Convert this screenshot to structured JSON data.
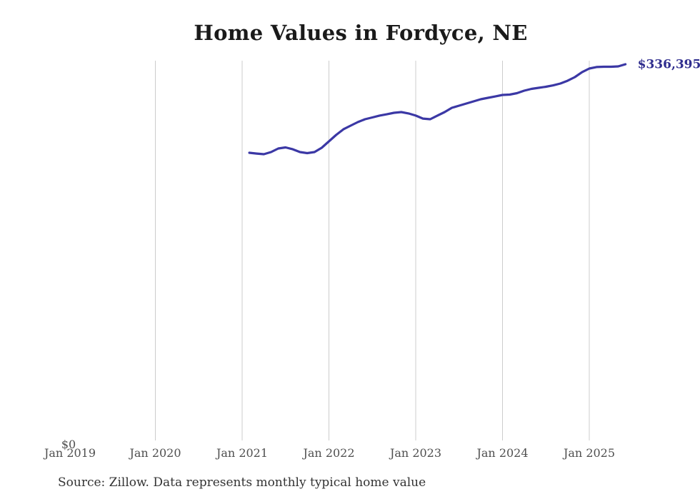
{
  "page": {
    "background": "#ffffff"
  },
  "chart_data": {
    "type": "line",
    "title": "Home Values in Fordyce, NE",
    "source_note": "Source: Zillow. Data represents monthly typical home value",
    "end_label": "$336,395",
    "colors": {
      "line": "#3b38a5",
      "end_label": "#2f2d8e",
      "grid": "#cccccc",
      "axis_text": "#4f4f4f",
      "title_text": "#1a1a1a",
      "source_text": "#333333"
    },
    "x_ticks": [
      {
        "label": "Jan 2019",
        "gridline": false
      },
      {
        "label": "Jan 2020",
        "gridline": true
      },
      {
        "label": "Jan 2021",
        "gridline": true
      },
      {
        "label": "Jan 2022",
        "gridline": true
      },
      {
        "label": "Jan 2023",
        "gridline": true
      },
      {
        "label": "Jan 2024",
        "gridline": true
      },
      {
        "label": "Jan 2025",
        "gridline": true
      }
    ],
    "y_axis": {
      "zero_label": "$0",
      "min": 0,
      "max": 336395
    },
    "legend": "none",
    "grid": "vertical-only",
    "series": [
      {
        "name": "Monthly typical home value",
        "months": [
          "2021-02",
          "2021-03",
          "2021-04",
          "2021-05",
          "2021-06",
          "2021-07",
          "2021-08",
          "2021-09",
          "2021-10",
          "2021-11",
          "2021-12",
          "2022-01",
          "2022-02",
          "2022-03",
          "2022-04",
          "2022-05",
          "2022-06",
          "2022-07",
          "2022-08",
          "2022-09",
          "2022-10",
          "2022-11",
          "2022-12",
          "2023-01",
          "2023-02",
          "2023-03",
          "2023-04",
          "2023-05",
          "2023-06",
          "2023-07",
          "2023-08",
          "2023-09",
          "2023-10",
          "2023-11",
          "2023-12",
          "2024-01",
          "2024-02",
          "2024-03",
          "2024-04",
          "2024-05",
          "2024-06",
          "2024-07",
          "2024-08",
          "2024-09",
          "2024-10",
          "2024-11",
          "2024-12",
          "2025-01",
          "2025-02",
          "2025-03",
          "2025-04",
          "2025-05",
          "2025-06"
        ],
        "values": [
          258000,
          257300,
          256700,
          258600,
          261800,
          262700,
          261100,
          258600,
          257700,
          258600,
          262400,
          268100,
          273800,
          278800,
          282000,
          285200,
          287700,
          289300,
          290900,
          292100,
          293400,
          294000,
          292800,
          290900,
          288300,
          287700,
          290900,
          294000,
          297800,
          299700,
          301600,
          303500,
          305400,
          306700,
          307900,
          309200,
          309500,
          310800,
          313000,
          314600,
          315500,
          316500,
          317700,
          319300,
          321800,
          325000,
          329400,
          332600,
          333900,
          334200,
          334200,
          334500,
          336395
        ]
      }
    ]
  }
}
